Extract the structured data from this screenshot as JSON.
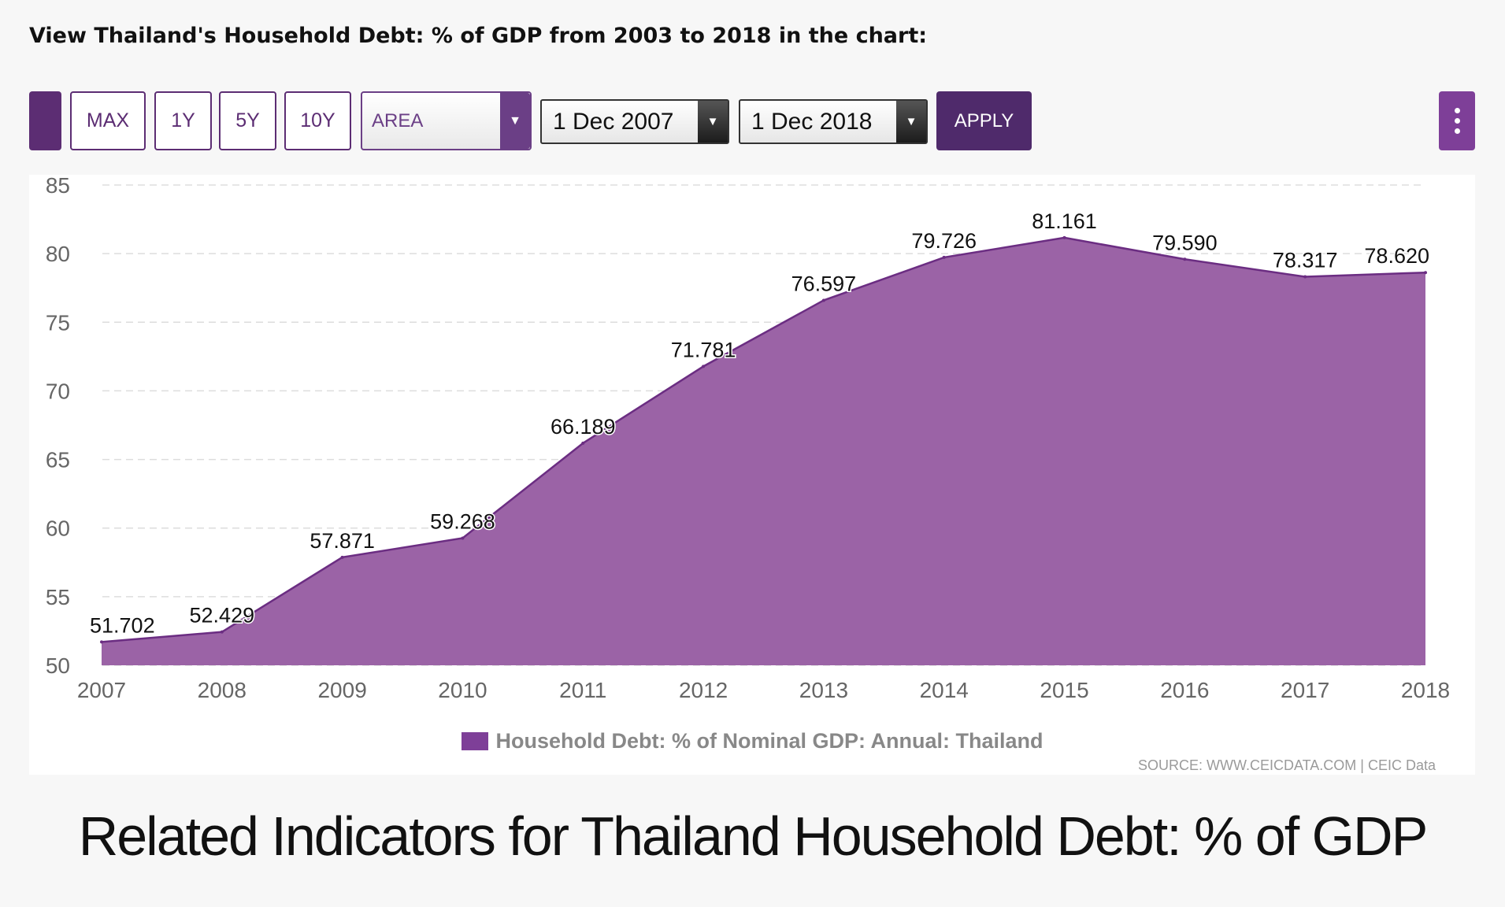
{
  "heading": "View Thailand's Household Debt: % of GDP from 2003 to 2018 in the chart:",
  "toolbar": {
    "max_label": "MAX",
    "y1_label": "1Y",
    "y5_label": "5Y",
    "y10_label": "10Y",
    "chart_type": "AREA",
    "from_date": "1 Dec 2007",
    "to_date": "1 Dec 2018",
    "apply_label": "APPLY"
  },
  "colors": {
    "area_fill": "#9b63a6",
    "area_line": "#6b2d82",
    "accent": "#5c2d73",
    "legend_swatch": "#7e3f98"
  },
  "chart_data": {
    "type": "area",
    "x": [
      "2007",
      "2008",
      "2009",
      "2010",
      "2011",
      "2012",
      "2013",
      "2014",
      "2015",
      "2016",
      "2017",
      "2018"
    ],
    "series": [
      {
        "name": "Household Debt: % of Nominal GDP: Annual: Thailand",
        "values": [
          51.702,
          52.429,
          57.871,
          59.268,
          66.189,
          71.781,
          76.597,
          79.726,
          81.161,
          79.59,
          78.317,
          78.62
        ],
        "labels": [
          "51.702",
          "52.429",
          "57.871",
          "59.268",
          "66.189",
          "71.781",
          "76.597",
          "79.726",
          "81.161",
          "79.590",
          "78.317",
          "78.620"
        ]
      }
    ],
    "ylim": [
      50,
      85
    ],
    "yticks": [
      "50",
      "55",
      "60",
      "65",
      "70",
      "75",
      "80",
      "85"
    ],
    "grid": "horizontal dashed",
    "legend": "bottom-center",
    "source": "SOURCE: WWW.CEICDATA.COM | CEIC Data"
  },
  "related_title": "Related Indicators for Thailand Household Debt: % of GDP"
}
